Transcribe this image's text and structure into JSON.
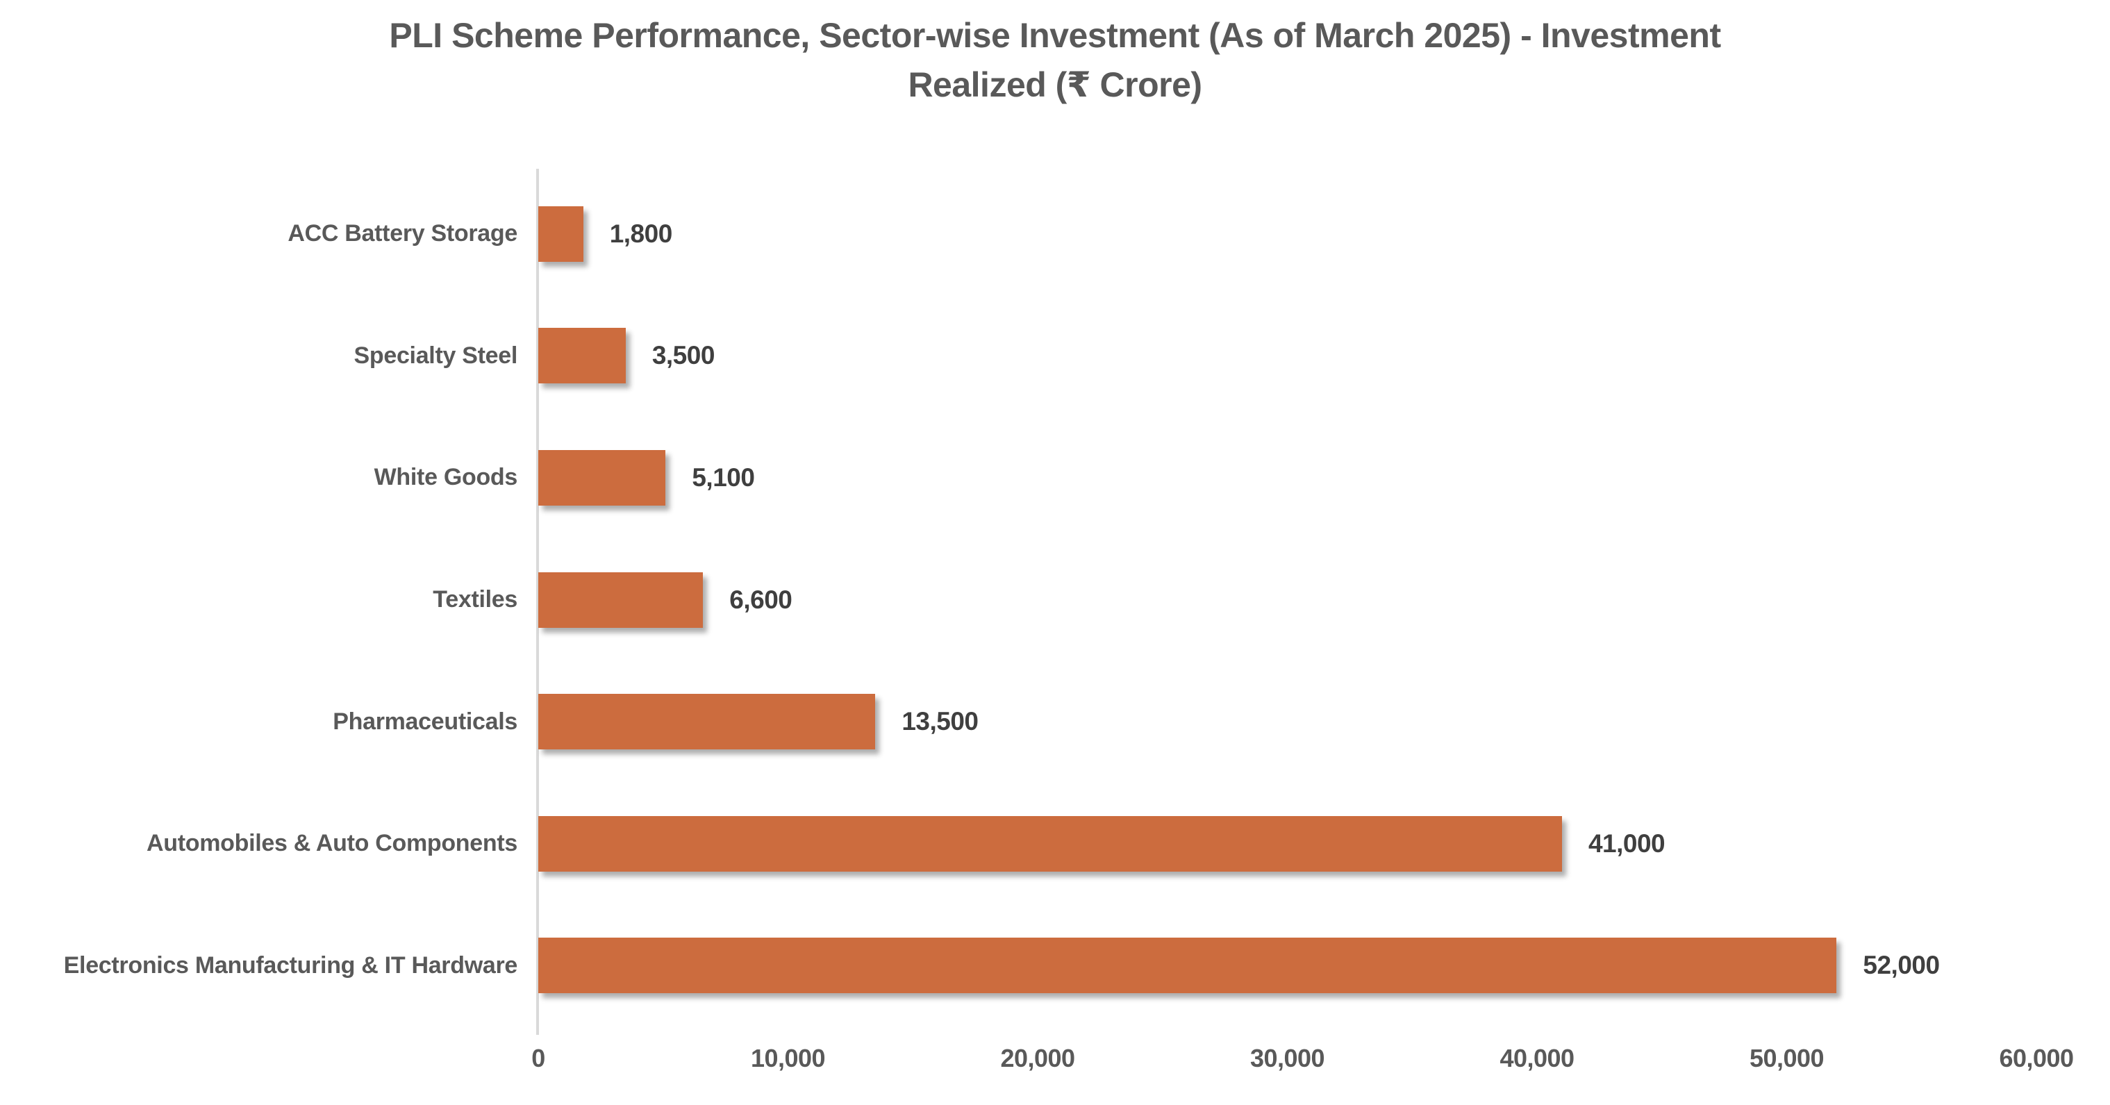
{
  "chart_data": {
    "type": "bar",
    "orientation": "horizontal",
    "title": "PLI Scheme Performance, Sector-wise Investment (As of March 2025) - Investment Realized (₹ Crore)",
    "title_lines": [
      "PLI Scheme Performance, Sector-wise Investment (As of March 2025) - Investment",
      "Realized (₹ Crore)"
    ],
    "categories": [
      "ACC Battery Storage",
      "Specialty Steel",
      "White Goods",
      "Textiles",
      "Pharmaceuticals",
      "Automobiles & Auto Components",
      "Electronics Manufacturing & IT Hardware"
    ],
    "values": [
      1800,
      3500,
      5100,
      6600,
      13500,
      41000,
      52000
    ],
    "value_labels": [
      "1,800",
      "3,500",
      "5,100",
      "6,600",
      "13,500",
      "41,000",
      "52,000"
    ],
    "x_tick_labels": [
      "0",
      "10,000",
      "20,000",
      "30,000",
      "40,000",
      "50,000",
      "60,000"
    ],
    "xlim": [
      0,
      60000
    ],
    "xlabel": "",
    "ylabel": "",
    "grid": false,
    "legend": false,
    "data_labels": true,
    "bar_color": "#CC6C3E",
    "title_color": "#595959",
    "category_label_color": "#595959",
    "value_label_color": "#3F3F3F",
    "axis_line_color": "#D9D9D9"
  }
}
